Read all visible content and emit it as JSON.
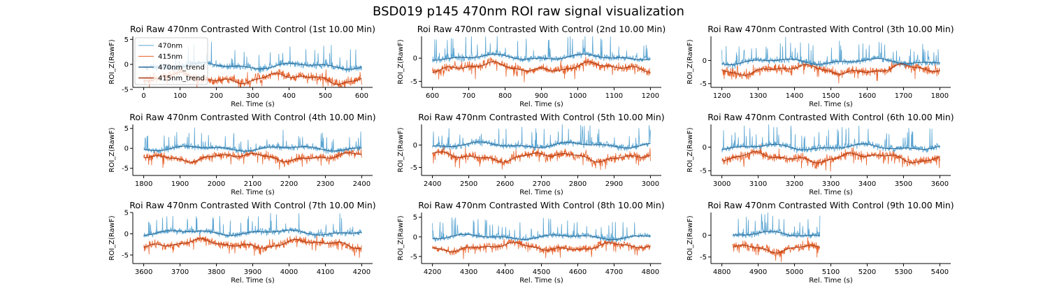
{
  "suptitle": "BSD019 p145 470nm ROI  raw signal visualization",
  "colors": {
    "s470": "#5aa5d2",
    "s415": "#e8632c",
    "t470": "#2f6d98",
    "t415": "#a8401c"
  },
  "legend": {
    "location": "upper-left of first panel",
    "entries": [
      "470nm",
      "415nm",
      "470nm_trend",
      "415nm_trend"
    ]
  },
  "chart_data": [
    {
      "type": "line",
      "title": "Roi Raw 470nm Contrasted With Control (1st 10.00 Min)",
      "xlabel": "Rel. Time (s)",
      "ylabel": "ROI_Z(RawF)",
      "xlim": [
        -30,
        630
      ],
      "ylim": [
        -4.6,
        5.6
      ],
      "xticks": [
        0,
        100,
        200,
        300,
        400,
        500,
        600
      ],
      "yticks": [
        -5,
        0,
        5
      ],
      "data_range": [
        0,
        600
      ],
      "series_470_level": -0.3,
      "series_415_level": -2.8,
      "show_legend": true
    },
    {
      "type": "line",
      "title": "Roi Raw 470nm Contrasted With Control (2nd 10.00 Min)",
      "xlabel": "Rel. Time (s)",
      "ylabel": "ROI_Z(RawF)",
      "xlim": [
        570,
        1230
      ],
      "ylim": [
        -6.3,
        4.7
      ],
      "xticks": [
        600,
        700,
        800,
        900,
        1000,
        1100,
        1200
      ],
      "yticks": [
        -5,
        0
      ],
      "data_range": [
        600,
        1200
      ],
      "series_470_level": 0.2,
      "series_415_level": -2.0
    },
    {
      "type": "line",
      "title": "Roi Raw 470nm Contrasted With Control (3th 10.00 Min)",
      "xlabel": "Rel. Time (s)",
      "ylabel": "ROI_Z(RawF)",
      "xlim": [
        1170,
        1830
      ],
      "ylim": [
        -5.8,
        5.2
      ],
      "xticks": [
        1200,
        1300,
        1400,
        1500,
        1600,
        1700,
        1800
      ],
      "yticks": [
        -5,
        0
      ],
      "data_range": [
        1200,
        1800
      ],
      "series_470_level": -0.2,
      "series_415_level": -2.0
    },
    {
      "type": "line",
      "title": "Roi Raw 470nm Contrasted With Control (4th 10.00 Min)",
      "xlabel": "Rel. Time (s)",
      "ylabel": "ROI_Z(RawF)",
      "xlim": [
        1770,
        2430
      ],
      "ylim": [
        -6.8,
        6.0
      ],
      "xticks": [
        1800,
        1900,
        2000,
        2100,
        2200,
        2300,
        2400
      ],
      "yticks": [
        -5,
        0,
        5
      ],
      "data_range": [
        1800,
        2400
      ],
      "series_470_level": 0.0,
      "series_415_level": -2.2
    },
    {
      "type": "line",
      "title": "Roi Raw 470nm Contrasted With Control (5th 10.00 Min)",
      "xlabel": "Rel. Time (s)",
      "ylabel": "ROI_Z(RawF)",
      "xlim": [
        2370,
        3030
      ],
      "ylim": [
        -6.8,
        4.6
      ],
      "xticks": [
        2400,
        2500,
        2600,
        2700,
        2800,
        2900,
        3000
      ],
      "yticks": [
        -5,
        0
      ],
      "data_range": [
        2400,
        3000
      ],
      "series_470_level": 0.0,
      "series_415_level": -2.6
    },
    {
      "type": "line",
      "title": "Roi Raw 470nm Contrasted With Control (6th 10.00 Min)",
      "xlabel": "Rel. Time (s)",
      "ylabel": "ROI_Z(RawF)",
      "xlim": [
        2970,
        3630
      ],
      "ylim": [
        -6.0,
        4.8
      ],
      "xticks": [
        3000,
        3100,
        3200,
        3300,
        3400,
        3500,
        3600
      ],
      "yticks": [
        -5,
        0
      ],
      "data_range": [
        3000,
        3600
      ],
      "series_470_level": 0.0,
      "series_415_level": -2.2
    },
    {
      "type": "line",
      "title": "Roi Raw 470nm Contrasted With Control (7th 10.00 Min)",
      "xlabel": "Rel. Time (s)",
      "ylabel": "ROI_Z(RawF)",
      "xlim": [
        3570,
        4230
      ],
      "ylim": [
        -7.0,
        5.0
      ],
      "xticks": [
        3600,
        3700,
        3800,
        3900,
        4000,
        4100,
        4200
      ],
      "yticks": [
        -5,
        0,
        5
      ],
      "data_range": [
        3600,
        4200
      ],
      "series_470_level": 0.3,
      "series_415_level": -2.4
    },
    {
      "type": "line",
      "title": "Roi Raw 470nm Contrasted With Control (8th 10.00 Min)",
      "xlabel": "Rel. Time (s)",
      "ylabel": "ROI_Z(RawF)",
      "xlim": [
        4170,
        4830
      ],
      "ylim": [
        -6.8,
        6.2
      ],
      "xticks": [
        4200,
        4300,
        4400,
        4500,
        4600,
        4700,
        4800
      ],
      "yticks": [
        -5,
        0,
        5
      ],
      "data_range": [
        4200,
        4800
      ],
      "series_470_level": 0.0,
      "series_415_level": -2.6
    },
    {
      "type": "line",
      "title": "Roi Raw 470nm Contrasted With Control (9th 10.00 Min)",
      "xlabel": "Rel. Time (s)",
      "ylabel": "ROI_Z(RawF)",
      "xlim": [
        4770,
        5430
      ],
      "ylim": [
        -6.5,
        5.2
      ],
      "xticks": [
        4800,
        4900,
        5000,
        5100,
        5200,
        5300,
        5400
      ],
      "yticks": [
        -5,
        0
      ],
      "data_range": [
        4830,
        5070
      ],
      "series_470_level": 0.2,
      "series_415_level": -2.8
    }
  ]
}
